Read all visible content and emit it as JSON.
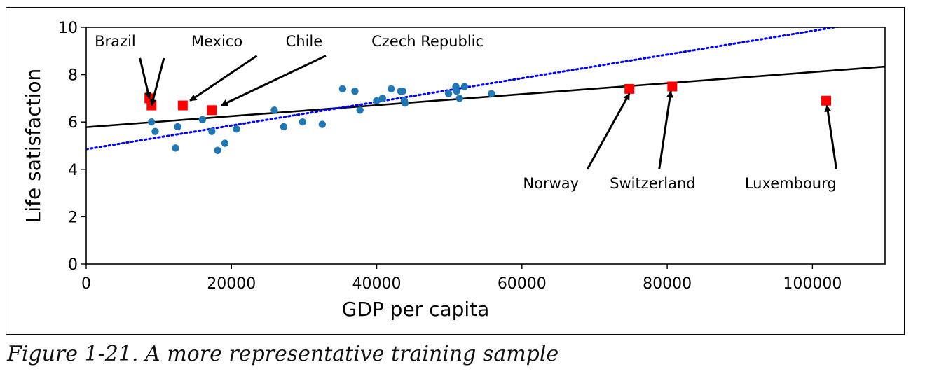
{
  "caption": "Figure 1-21. A more representative training sample",
  "chart_data": {
    "type": "scatter",
    "xlabel": "GDP per capita",
    "ylabel": "Life satisfaction",
    "xlim": [
      0,
      110000
    ],
    "ylim": [
      0,
      10
    ],
    "x_ticks": [
      0,
      20000,
      40000,
      60000,
      80000,
      100000
    ],
    "y_ticks": [
      0,
      2,
      4,
      6,
      8,
      10
    ],
    "grid": false,
    "colors": {
      "points": "#1f77b4",
      "highlight": "#ff0000",
      "fit_full": "#000000",
      "fit_partial": "#0000ff"
    },
    "series": [
      {
        "marker": "circle",
        "points": [
          [
            9000,
            6.0
          ],
          [
            9500,
            5.6
          ],
          [
            12300,
            4.9
          ],
          [
            12600,
            5.8
          ],
          [
            16000,
            6.1
          ],
          [
            17300,
            5.6
          ],
          [
            18100,
            4.8
          ],
          [
            19100,
            5.1
          ],
          [
            20700,
            5.7
          ],
          [
            25900,
            6.5
          ],
          [
            27200,
            5.8
          ],
          [
            29800,
            6.0
          ],
          [
            32500,
            5.9
          ],
          [
            35300,
            7.4
          ],
          [
            37000,
            7.3
          ],
          [
            37700,
            6.5
          ],
          [
            40000,
            6.9
          ],
          [
            40800,
            7.0
          ],
          [
            42000,
            7.4
          ],
          [
            43300,
            7.3
          ],
          [
            43600,
            7.3
          ],
          [
            43800,
            6.9
          ],
          [
            43900,
            6.8
          ],
          [
            49900,
            7.2
          ],
          [
            50900,
            7.5
          ],
          [
            51000,
            7.3
          ],
          [
            51400,
            7.0
          ],
          [
            52100,
            7.5
          ],
          [
            55800,
            7.2
          ]
        ]
      },
      {
        "marker": "square",
        "points": [
          [
            8700,
            7.0
          ],
          [
            9000,
            6.7
          ],
          [
            13300,
            6.7
          ],
          [
            17300,
            6.5
          ],
          [
            74800,
            7.4
          ],
          [
            80700,
            7.5
          ],
          [
            101900,
            6.9
          ]
        ]
      }
    ],
    "lines": [
      {
        "style": "solid",
        "x": [
          0,
          110000
        ],
        "y": [
          5.78,
          8.34
        ]
      },
      {
        "style": "dotted",
        "x": [
          0,
          110000
        ],
        "y": [
          4.85,
          10.35
        ]
      }
    ],
    "annotations": [
      {
        "text": "Brazil",
        "label_at": [
          4000,
          9.2
        ],
        "point": [
          8700,
          7.0
        ],
        "arrow_from": [
          7400,
          8.7
        ],
        "arrow_to": [
          8700,
          7.0
        ]
      },
      {
        "text": "Mexico",
        "label_at": [
          18000,
          9.2
        ],
        "point": [
          9000,
          6.7
        ],
        "arrow_from": [
          10700,
          8.7
        ],
        "arrow_to": [
          9000,
          6.7
        ]
      },
      {
        "text": "Chile",
        "label_at": [
          30000,
          9.2
        ],
        "point": [
          13300,
          6.7
        ],
        "arrow_from": [
          23500,
          8.8
        ],
        "arrow_to": [
          14300,
          6.9
        ]
      },
      {
        "text": "Czech Republic",
        "label_at": [
          47000,
          9.2
        ],
        "point": [
          17300,
          6.5
        ],
        "arrow_from": [
          33000,
          8.8
        ],
        "arrow_to": [
          18600,
          6.7
        ]
      },
      {
        "text": "Norway",
        "label_at": [
          64000,
          3.2
        ],
        "point": [
          74800,
          7.4
        ],
        "arrow_from": [
          69000,
          4.0
        ],
        "arrow_to": [
          74800,
          7.2
        ]
      },
      {
        "text": "Switzerland",
        "label_at": [
          78000,
          3.2
        ],
        "point": [
          80700,
          7.5
        ],
        "arrow_from": [
          78900,
          4.0
        ],
        "arrow_to": [
          80500,
          7.3
        ]
      },
      {
        "text": "Luxembourg",
        "label_at": [
          97000,
          3.2
        ],
        "point": [
          101900,
          6.9
        ],
        "arrow_from": [
          103300,
          4.0
        ],
        "arrow_to": [
          102000,
          6.7
        ]
      }
    ]
  }
}
